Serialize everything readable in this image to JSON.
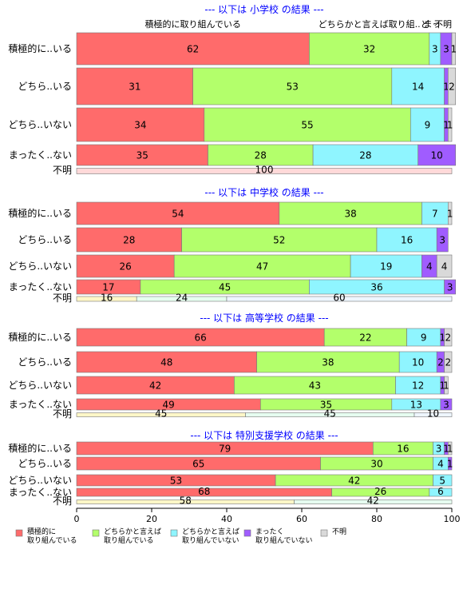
{
  "chart_data": {
    "type": "bar",
    "orientation": "horizontal",
    "stacked": true,
    "xlim": [
      0,
      100
    ],
    "xticks": [
      0,
      20,
      40,
      60,
      80,
      100
    ],
    "grid": false,
    "legend_position": "bottom-left",
    "colors": [
      "#ff6b6b",
      "#b3ff6b",
      "#8ff5ff",
      "#a05cff",
      "#d9d9d9"
    ],
    "legend": [
      "積極的に\n取り組んでいる",
      "どちらかと言えば\n取り組んでいる",
      "どちらかと言えば\n取り組んでいない",
      "まったく\n取り組んでいない",
      "不明"
    ],
    "panels": [
      {
        "title": "--- 以下は 小学校 の結果 ---",
        "top_labels": [
          "積極的に取り組んでいる",
          "どちらかと言えば取り組..",
          "ど",
          "まっ",
          "不明"
        ],
        "rows": [
          {
            "label": "積極的に..いる",
            "values": [
              62,
              32,
              3,
              3,
              1
            ]
          },
          {
            "label": "どちら..いる",
            "values": [
              31,
              53,
              14,
              1,
              2
            ]
          },
          {
            "label": "どちら..いない",
            "values": [
              34,
              55,
              9,
              1,
              1
            ]
          },
          {
            "label": "まったく..ない",
            "values": [
              35,
              28,
              28,
              10,
              0
            ]
          },
          {
            "label": "不明",
            "values": [
              0,
              0,
              0,
              0,
              100
            ]
          }
        ]
      },
      {
        "title": "--- 以下は 中学校 の結果 ---",
        "top_labels": [],
        "rows": [
          {
            "label": "積極的に..いる",
            "values": [
              54,
              38,
              7,
              0,
              1
            ]
          },
          {
            "label": "どちら..いる",
            "values": [
              28,
              52,
              16,
              3,
              0
            ]
          },
          {
            "label": "どちら..いない",
            "values": [
              26,
              47,
              19,
              4,
              4
            ]
          },
          {
            "label": "まったく..ない",
            "values": [
              17,
              45,
              36,
              3,
              0
            ]
          },
          {
            "label": "不明",
            "values": [
              16,
              24,
              60,
              0,
              0
            ]
          }
        ]
      },
      {
        "title": "--- 以下は 高等学校 の結果 ---",
        "top_labels": [],
        "rows": [
          {
            "label": "積極的に..いる",
            "values": [
              66,
              22,
              9,
              1,
              2
            ]
          },
          {
            "label": "どちら..いる",
            "values": [
              48,
              38,
              10,
              2,
              2
            ]
          },
          {
            "label": "どちら..いない",
            "values": [
              42,
              43,
              12,
              1,
              1
            ]
          },
          {
            "label": "まったく..ない",
            "values": [
              49,
              35,
              13,
              3,
              0
            ]
          },
          {
            "label": "不明",
            "values": [
              45,
              45,
              10,
              0,
              0
            ]
          }
        ]
      },
      {
        "title": "--- 以下は 特別支援学校 の結果 ---",
        "top_labels": [],
        "rows": [
          {
            "label": "積極的に..いる",
            "values": [
              79,
              16,
              3,
              1,
              1
            ]
          },
          {
            "label": "どちら..いる",
            "values": [
              65,
              30,
              4,
              1,
              0
            ]
          },
          {
            "label": "どちら..いない",
            "values": [
              53,
              42,
              5,
              0,
              0
            ]
          },
          {
            "label": "まったく..ない",
            "values": [
              68,
              26,
              6,
              0,
              0
            ]
          },
          {
            "label": "不明",
            "values": [
              58,
              42,
              0,
              0,
              0
            ]
          }
        ]
      }
    ]
  }
}
